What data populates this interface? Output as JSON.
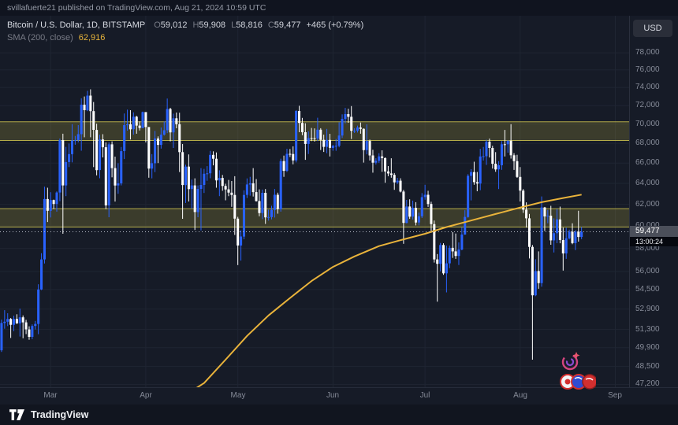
{
  "publish_bar": {
    "text": "svillafuerte21 published on TradingView.com, Aug 21, 2024 10:59 UTC"
  },
  "currency_button": {
    "label": "USD"
  },
  "symbol_info": {
    "title": "Bitcoin / U.S. Dollar, 1D, BITSTAMP",
    "ohlc": [
      {
        "label": "O",
        "value": "59,012"
      },
      {
        "label": "H",
        "value": "59,908"
      },
      {
        "label": "L",
        "value": "58,816"
      },
      {
        "label": "C",
        "value": "59,477"
      }
    ],
    "change": "+465 (+0.79%)"
  },
  "indicator": {
    "name": "SMA (200, close)",
    "value": "62,916"
  },
  "price_label": {
    "price": "59,477",
    "countdown": "13:00:24"
  },
  "bottom_bar": {
    "brand": "TradingView"
  },
  "colors": {
    "up": "#2962ff",
    "down": "#ffffff",
    "grid": "#1f2532",
    "zone_fill": "rgba(166,156,60,0.26)",
    "zone_border": "rgba(196,186,75,0.9)",
    "last_price_line": "#b7bcc8"
  },
  "chart_data": {
    "type": "candlestick",
    "symbol": "BTCUSD",
    "interval": "1D",
    "scale": "log",
    "price_min": 47000,
    "price_max": 82500,
    "total_slots": 205,
    "current_price": 59477,
    "first_open": 49700,
    "candle_format": "[high, low, close]; open = previous close",
    "y_ticks": [
      {
        "label": "78,000",
        "value": 78000
      },
      {
        "label": "76,000",
        "value": 76000
      },
      {
        "label": "74,000",
        "value": 74000
      },
      {
        "label": "72,000",
        "value": 72000
      },
      {
        "label": "70,000",
        "value": 70000
      },
      {
        "label": "68,000",
        "value": 68000
      },
      {
        "label": "66,000",
        "value": 66000
      },
      {
        "label": "64,000",
        "value": 64000
      },
      {
        "label": "62,000",
        "value": 62000
      },
      {
        "label": "60,000",
        "value": 60000
      },
      {
        "label": "58,000",
        "value": 58000
      },
      {
        "label": "56,000",
        "value": 56000
      },
      {
        "label": "54,500",
        "value": 54500
      },
      {
        "label": "52,900",
        "value": 52900
      },
      {
        "label": "51,300",
        "value": 51300
      },
      {
        "label": "49,900",
        "value": 49900
      },
      {
        "label": "48,500",
        "value": 48500
      },
      {
        "label": "47,200",
        "value": 47200
      }
    ],
    "x_ticks": [
      {
        "label": "Mar",
        "index": 16
      },
      {
        "label": "Apr",
        "index": 47
      },
      {
        "label": "May",
        "index": 77
      },
      {
        "label": "Jun",
        "index": 108
      },
      {
        "label": "Jul",
        "index": 138
      },
      {
        "label": "Aug",
        "index": 169
      },
      {
        "label": "Sep",
        "index": 200
      }
    ],
    "zones": [
      {
        "from": 68300,
        "to": 70250
      },
      {
        "from": 59900,
        "to": 61600
      }
    ],
    "sma": {
      "name": "SMA (200, close)",
      "value": 62916,
      "color": "#e9b33b",
      "points": [
        [
          58,
          46000
        ],
        [
          61,
          46600
        ],
        [
          66,
          47300
        ],
        [
          73,
          49000
        ],
        [
          80,
          50800
        ],
        [
          87,
          52400
        ],
        [
          94,
          53800
        ],
        [
          101,
          55200
        ],
        [
          108,
          56400
        ],
        [
          115,
          57300
        ],
        [
          123,
          58200
        ],
        [
          131,
          58800
        ],
        [
          138,
          59300
        ],
        [
          145,
          59900
        ],
        [
          153,
          60500
        ],
        [
          161,
          61100
        ],
        [
          169,
          61700
        ],
        [
          176,
          62200
        ],
        [
          183,
          62600
        ],
        [
          189,
          62916
        ]
      ]
    },
    "candles": [
      [
        52070,
        49580,
        51800
      ],
      [
        52820,
        51350,
        51900
      ],
      [
        52570,
        51560,
        52120
      ],
      [
        52190,
        50640,
        51660
      ],
      [
        52380,
        51170,
        52120
      ],
      [
        52490,
        51730,
        51780
      ],
      [
        52940,
        50750,
        52250
      ],
      [
        52400,
        50620,
        51850
      ],
      [
        52050,
        50940,
        51300
      ],
      [
        51540,
        50500,
        50730
      ],
      [
        51690,
        50550,
        51570
      ],
      [
        51960,
        51290,
        51730
      ],
      [
        54930,
        50930,
        54500
      ],
      [
        57580,
        54450,
        57040
      ],
      [
        63680,
        56690,
        62500
      ],
      [
        63580,
        60360,
        61400
      ],
      [
        63150,
        60780,
        62400
      ],
      [
        62450,
        61560,
        62030
      ],
      [
        63230,
        61320,
        63120
      ],
      [
        68500,
        62300,
        68330
      ],
      [
        69000,
        59300,
        63800
      ],
      [
        67640,
        62780,
        66100
      ],
      [
        67980,
        65600,
        66900
      ],
      [
        70000,
        66070,
        68300
      ],
      [
        68770,
        67860,
        68330
      ],
      [
        69900,
        68100,
        68950
      ],
      [
        72800,
        67250,
        72100
      ],
      [
        73000,
        68630,
        71500
      ],
      [
        73630,
        71400,
        73100
      ],
      [
        73800,
        68630,
        71400
      ],
      [
        72400,
        65600,
        69400
      ],
      [
        70050,
        64780,
        65300
      ],
      [
        68900,
        64500,
        68400
      ],
      [
        68950,
        66570,
        67600
      ],
      [
        68100,
        61550,
        61900
      ],
      [
        68100,
        60800,
        67900
      ],
      [
        68200,
        64590,
        65500
      ],
      [
        66650,
        62260,
        63800
      ],
      [
        65980,
        63000,
        64000
      ],
      [
        67620,
        63800,
        67200
      ],
      [
        71150,
        66400,
        69900
      ],
      [
        71560,
        69320,
        69990
      ],
      [
        71500,
        68400,
        69470
      ],
      [
        71270,
        68900,
        70800
      ],
      [
        70900,
        69000,
        69850
      ],
      [
        70300,
        69340,
        69600
      ],
      [
        71350,
        69570,
        71300
      ],
      [
        71290,
        68100,
        69700
      ],
      [
        69700,
        64550,
        65450
      ],
      [
        66900,
        64490,
        65980
      ],
      [
        69300,
        65100,
        68500
      ],
      [
        68720,
        66000,
        67840
      ],
      [
        69650,
        67460,
        68900
      ],
      [
        70290,
        68800,
        69360
      ],
      [
        72780,
        69060,
        71630
      ],
      [
        71760,
        68210,
        69140
      ],
      [
        71130,
        67530,
        70630
      ],
      [
        71250,
        69570,
        70000
      ],
      [
        71230,
        65110,
        67100
      ],
      [
        67930,
        60660,
        63840
      ],
      [
        65840,
        62130,
        65650
      ],
      [
        66870,
        62270,
        63450
      ],
      [
        64370,
        61600,
        63800
      ],
      [
        64490,
        59640,
        61280
      ],
      [
        63800,
        60800,
        63470
      ],
      [
        65500,
        59600,
        63850
      ],
      [
        65420,
        63080,
        64940
      ],
      [
        65690,
        64250,
        64980
      ],
      [
        67230,
        64500,
        66820
      ],
      [
        67180,
        65770,
        66430
      ],
      [
        67070,
        63580,
        64290
      ],
      [
        65280,
        62780,
        64530
      ],
      [
        64820,
        63290,
        63750
      ],
      [
        63960,
        62380,
        63420
      ],
      [
        64340,
        62780,
        63110
      ],
      [
        64230,
        61770,
        62890
      ],
      [
        64700,
        59190,
        60670
      ],
      [
        60840,
        56550,
        58250
      ],
      [
        59620,
        56940,
        59050
      ],
      [
        63330,
        58810,
        62890
      ],
      [
        64480,
        62600,
        63890
      ],
      [
        64640,
        62820,
        64010
      ],
      [
        65500,
        62740,
        63160
      ],
      [
        64420,
        62260,
        62310
      ],
      [
        63420,
        60890,
        61190
      ],
      [
        63400,
        60630,
        63090
      ],
      [
        63450,
        60190,
        60790
      ],
      [
        61500,
        60490,
        60820
      ],
      [
        61870,
        60610,
        61480
      ],
      [
        63460,
        60770,
        62900
      ],
      [
        63110,
        61130,
        61550
      ],
      [
        66440,
        61320,
        66200
      ],
      [
        66750,
        64640,
        65230
      ],
      [
        67450,
        65110,
        66930
      ],
      [
        67420,
        66610,
        66910
      ],
      [
        67700,
        65870,
        66270
      ],
      [
        71510,
        66060,
        71420
      ],
      [
        71980,
        69160,
        70140
      ],
      [
        70670,
        68840,
        69160
      ],
      [
        70100,
        66320,
        67940
      ],
      [
        69250,
        66910,
        68540
      ],
      [
        69600,
        68230,
        68530
      ],
      [
        69560,
        68180,
        68510
      ],
      [
        70690,
        68240,
        69420
      ],
      [
        69580,
        67320,
        68360
      ],
      [
        68900,
        67120,
        67640
      ],
      [
        69500,
        66990,
        68350
      ],
      [
        68990,
        66660,
        67540
      ],
      [
        67850,
        67240,
        67740
      ],
      [
        68450,
        67240,
        67750
      ],
      [
        70200,
        67600,
        68810
      ],
      [
        71050,
        68560,
        70560
      ],
      [
        71750,
        70100,
        71080
      ],
      [
        71660,
        70150,
        70790
      ],
      [
        71950,
        68450,
        69300
      ],
      [
        69580,
        69080,
        69310
      ],
      [
        69850,
        69120,
        69650
      ],
      [
        70180,
        69000,
        69510
      ],
      [
        69560,
        66050,
        67310
      ],
      [
        69990,
        66880,
        68250
      ],
      [
        68390,
        66250,
        66770
      ],
      [
        67340,
        65050,
        66040
      ],
      [
        66480,
        65850,
        66230
      ],
      [
        66990,
        66020,
        66670
      ],
      [
        67290,
        65130,
        66500
      ],
      [
        66570,
        64060,
        65170
      ],
      [
        65700,
        64700,
        64970
      ],
      [
        66480,
        64550,
        64830
      ],
      [
        65010,
        63380,
        64100
      ],
      [
        64540,
        63940,
        64260
      ],
      [
        64500,
        63130,
        63210
      ],
      [
        63370,
        58400,
        60280
      ],
      [
        62420,
        60240,
        61800
      ],
      [
        62480,
        60660,
        60860
      ],
      [
        62350,
        60590,
        61680
      ],
      [
        62200,
        60050,
        60320
      ],
      [
        61230,
        60060,
        60890
      ],
      [
        63060,
        60730,
        62680
      ],
      [
        63860,
        62430,
        62900
      ],
      [
        63290,
        61760,
        62030
      ],
      [
        62250,
        59400,
        60170
      ],
      [
        60500,
        56770,
        57040
      ],
      [
        57500,
        53500,
        56660
      ],
      [
        58480,
        56020,
        58300
      ],
      [
        58450,
        55720,
        55850
      ],
      [
        58240,
        54260,
        56700
      ],
      [
        58250,
        56290,
        58050
      ],
      [
        59450,
        57170,
        57740
      ],
      [
        59320,
        57090,
        57340
      ],
      [
        58530,
        56560,
        57900
      ],
      [
        59850,
        57830,
        59230
      ],
      [
        61450,
        59200,
        60830
      ],
      [
        64900,
        60760,
        64740
      ],
      [
        65390,
        62370,
        65100
      ],
      [
        66130,
        63860,
        64120
      ],
      [
        65120,
        63240,
        63980
      ],
      [
        67440,
        63340,
        66660
      ],
      [
        67630,
        66250,
        66690
      ],
      [
        68370,
        65810,
        68170
      ],
      [
        68490,
        66560,
        67530
      ],
      [
        67750,
        65450,
        65930
      ],
      [
        67100,
        65130,
        65370
      ],
      [
        66200,
        63450,
        65780
      ],
      [
        68230,
        65330,
        67910
      ],
      [
        69400,
        66660,
        67900
      ],
      [
        68330,
        67050,
        68260
      ],
      [
        70000,
        66450,
        66780
      ],
      [
        67000,
        65320,
        66190
      ],
      [
        66830,
        64540,
        64630
      ],
      [
        65600,
        62270,
        63300
      ],
      [
        63450,
        61200,
        61500
      ],
      [
        62190,
        59850,
        60700
      ],
      [
        61110,
        57120,
        58130
      ],
      [
        58300,
        49000,
        54020
      ],
      [
        57050,
        53950,
        56040
      ],
      [
        57740,
        54560,
        55030
      ],
      [
        62750,
        54730,
        61710
      ],
      [
        61760,
        59550,
        60880
      ],
      [
        61470,
        60250,
        60940
      ],
      [
        61860,
        58320,
        58710
      ],
      [
        60700,
        57640,
        59350
      ],
      [
        61570,
        58460,
        60600
      ],
      [
        61790,
        58450,
        58740
      ],
      [
        59850,
        56080,
        57560
      ],
      [
        59840,
        57090,
        58890
      ],
      [
        59670,
        58790,
        59480
      ],
      [
        60250,
        58370,
        58460
      ],
      [
        59620,
        57850,
        59490
      ],
      [
        61400,
        58600,
        59012
      ],
      [
        59908,
        58816,
        59477
      ]
    ]
  }
}
